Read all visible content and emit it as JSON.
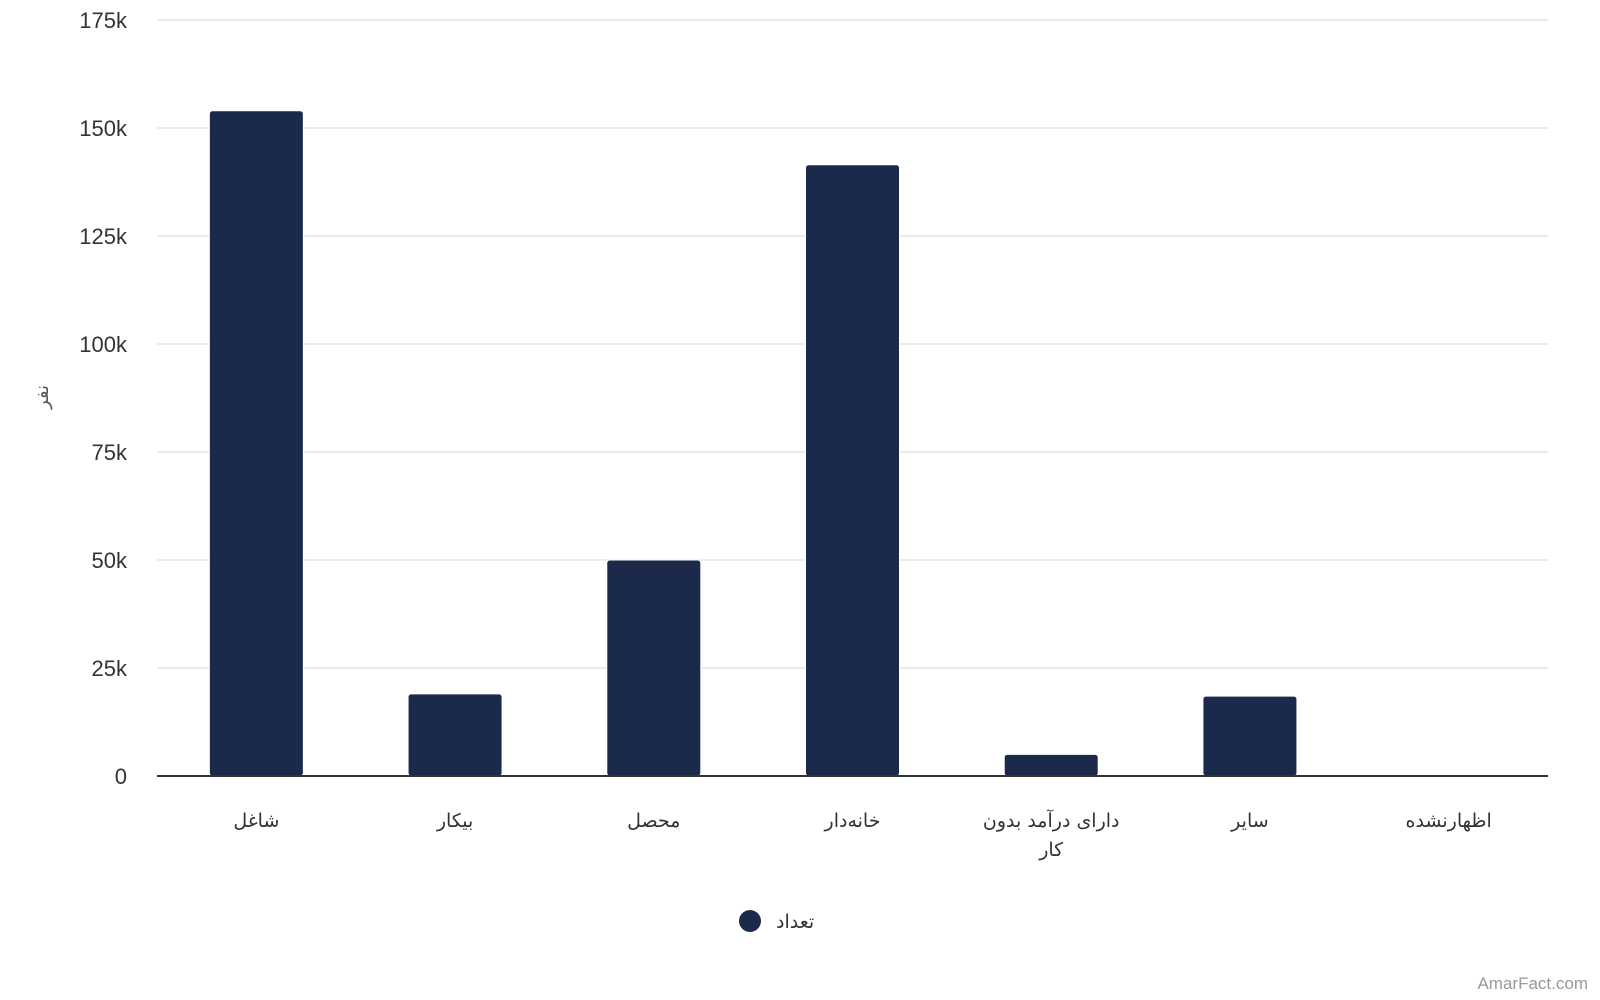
{
  "chart_data": {
    "type": "bar",
    "categories": [
      "شاغل",
      "بیکار",
      "محصل",
      "خانه‌دار",
      "دارای درآمد بدون کار",
      "سایر",
      "اظهارنشده"
    ],
    "category_lines": [
      [
        "شاغل"
      ],
      [
        "بیکار"
      ],
      [
        "محصل"
      ],
      [
        "خانه‌دار"
      ],
      [
        "دارای درآمد بدون",
        "کار"
      ],
      [
        "سایر"
      ],
      [
        "اظهارنشده"
      ]
    ],
    "series": [
      {
        "name": "تعداد",
        "values": [
          154000,
          19000,
          50000,
          141500,
          5000,
          18500,
          0
        ]
      }
    ],
    "ylabel": "نفر",
    "ylim": [
      0,
      175000
    ],
    "yticks": [
      0,
      25000,
      50000,
      75000,
      100000,
      125000,
      150000,
      175000
    ],
    "ytick_labels": [
      "0",
      "25k",
      "50k",
      "75k",
      "100k",
      "125k",
      "150k",
      "175k"
    ],
    "grid": true,
    "legend_position": "bottom-center",
    "bar_color": "#1b294b"
  },
  "credit": "AmarFact.com"
}
